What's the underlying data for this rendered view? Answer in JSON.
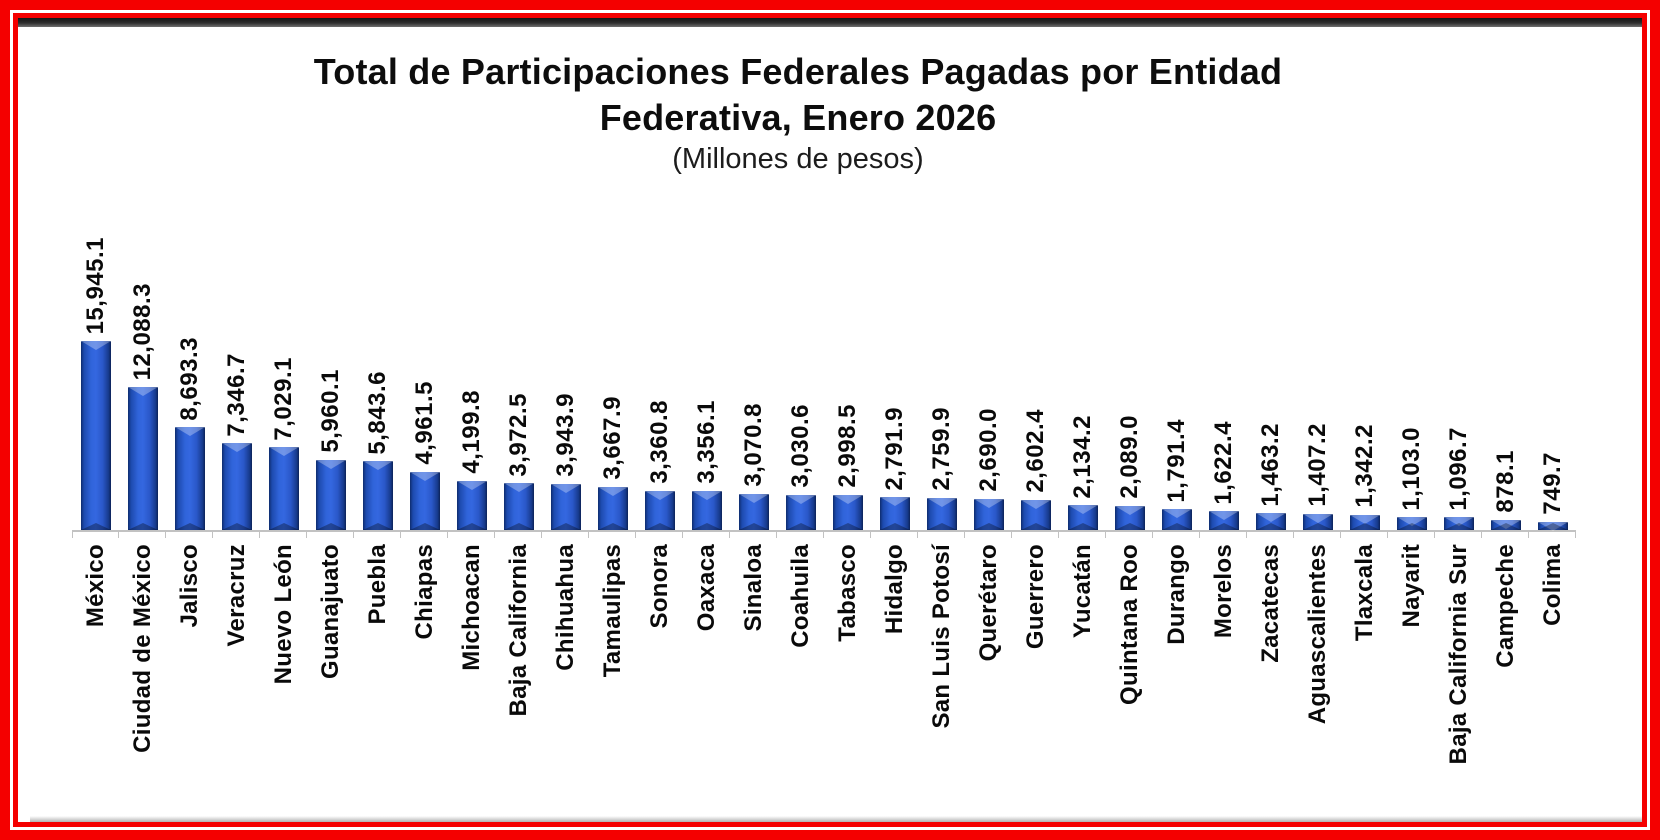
{
  "frame": {
    "border_color": "#f40000",
    "top_strip_color": "#2e2e2e"
  },
  "header": {
    "title_line1": "Total de Participaciones Federales Pagadas por Entidad",
    "title_line2": "Federativa, Enero 2026",
    "subtitle": "(Millones de pesos)"
  },
  "chart_data": {
    "type": "bar",
    "title": "Total de Participaciones Federales Pagadas por Entidad Federativa, Enero 2026",
    "subtitle": "(Millones de pesos)",
    "unit": "Millones de pesos",
    "orientation": "vertical",
    "grid": false,
    "legend": "none",
    "ylim": [
      0,
      16000
    ],
    "bar_color_main": "#2a57c8",
    "bar_color_edge": "#0e2c6d",
    "axis_color": "#c2c2c2",
    "value_label_rotation": "vertical-bottom-to-top",
    "category_label_rotation": "vertical-bottom-to-top",
    "categories": [
      "México",
      "Ciudad de México",
      "Jalisco",
      "Veracruz",
      "Nuevo León",
      "Guanajuato",
      "Puebla",
      "Chiapas",
      "Michoacan",
      "Baja California",
      "Chihuahua",
      "Tamaulipas",
      "Sonora",
      "Oaxaca",
      "Sinaloa",
      "Coahuila",
      "Tabasco",
      "Hidalgo",
      "San Luis Potosí",
      "Querétaro",
      "Guerrero",
      "Yucatán",
      "Quintana Roo",
      "Durango",
      "Morelos",
      "Zacatecas",
      "Aguascalientes",
      "Tlaxcala",
      "Nayarit",
      "Baja California Sur",
      "Campeche",
      "Colima"
    ],
    "values": [
      15945.1,
      12088.3,
      8693.3,
      7346.7,
      7029.1,
      5960.1,
      5843.6,
      4961.5,
      4199.8,
      3972.5,
      3943.9,
      3667.9,
      3360.8,
      3356.1,
      3070.8,
      3030.6,
      2998.5,
      2791.9,
      2759.9,
      2690.0,
      2602.4,
      2134.2,
      2089.0,
      1791.4,
      1622.4,
      1463.2,
      1407.2,
      1342.2,
      1103.0,
      1096.7,
      878.1,
      749.7
    ],
    "value_labels": [
      "15,945.1",
      "12,088.3",
      "8,693.3",
      "7,346.7",
      "7,029.1",
      "5,960.1",
      "5,843.6",
      "4,961.5",
      "4,199.8",
      "3,972.5",
      "3,943.9",
      "3,667.9",
      "3,360.8",
      "3,356.1",
      "3,070.8",
      "3,030.6",
      "2,998.5",
      "2,791.9",
      "2,759.9",
      "2,690.0",
      "2,602.4",
      "2,134.2",
      "2,089.0",
      "1,791.4",
      "1,622.4",
      "1,463.2",
      "1,407.2",
      "1,342.2",
      "1,103.0",
      "1,096.7",
      "878.1",
      "749.7"
    ]
  }
}
